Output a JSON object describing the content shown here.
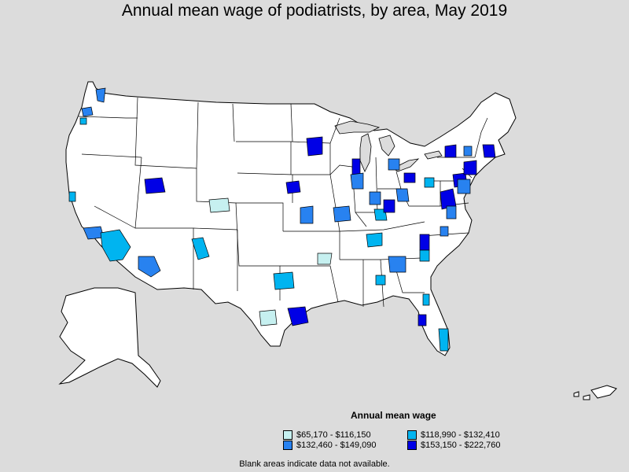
{
  "title": "Annual mean wage of podiatrists, by area, May 2019",
  "legend": {
    "title": "Annual mean wage",
    "items": [
      {
        "label": "$65,170 - $116,150",
        "color": "#c6f0f0"
      },
      {
        "label": "$118,990 - $132,410",
        "color": "#00b4f0"
      },
      {
        "label": "$132,460 - $149,090",
        "color": "#2882f0"
      },
      {
        "label": "$153,150 - $222,760",
        "color": "#0000e6"
      }
    ]
  },
  "footnote": "Blank areas indicate data not available.",
  "colors": {
    "background": "#dcdcdc",
    "land": "#ffffff",
    "border": "#000000"
  }
}
